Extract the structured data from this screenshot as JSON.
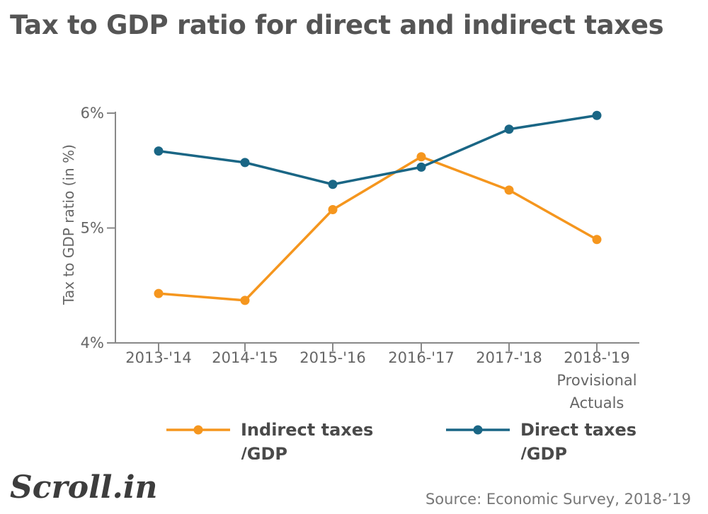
{
  "chart_data": {
    "type": "line",
    "title": "Tax to GDP ratio for direct and indirect taxes",
    "ylabel": "Tax to GDP ratio (in %)",
    "xlabel": "",
    "categories": [
      "2013-'14",
      "2014-'15",
      "2015-'16",
      "2016-'17",
      "2017-'18",
      "2018-'19"
    ],
    "category_sublabels": [
      "",
      "",
      "",
      "",
      "",
      "Provisional Actuals"
    ],
    "ylim": [
      4,
      6
    ],
    "yticks": [
      4,
      5,
      6
    ],
    "ytick_labels": [
      "4%",
      "5%",
      "6%"
    ],
    "grid": false,
    "legend_position": "bottom",
    "series": [
      {
        "name": "Indirect taxes /GDP",
        "color": "#f5961e",
        "values": [
          4.43,
          4.37,
          5.16,
          5.62,
          5.33,
          4.9
        ]
      },
      {
        "name": "Direct taxes /GDP",
        "color": "#1a6685",
        "values": [
          5.67,
          5.57,
          5.38,
          5.53,
          5.86,
          5.98
        ]
      }
    ]
  },
  "source": "Source:  Economic Survey, 2018-’19",
  "logo_text": "Scroll.in"
}
